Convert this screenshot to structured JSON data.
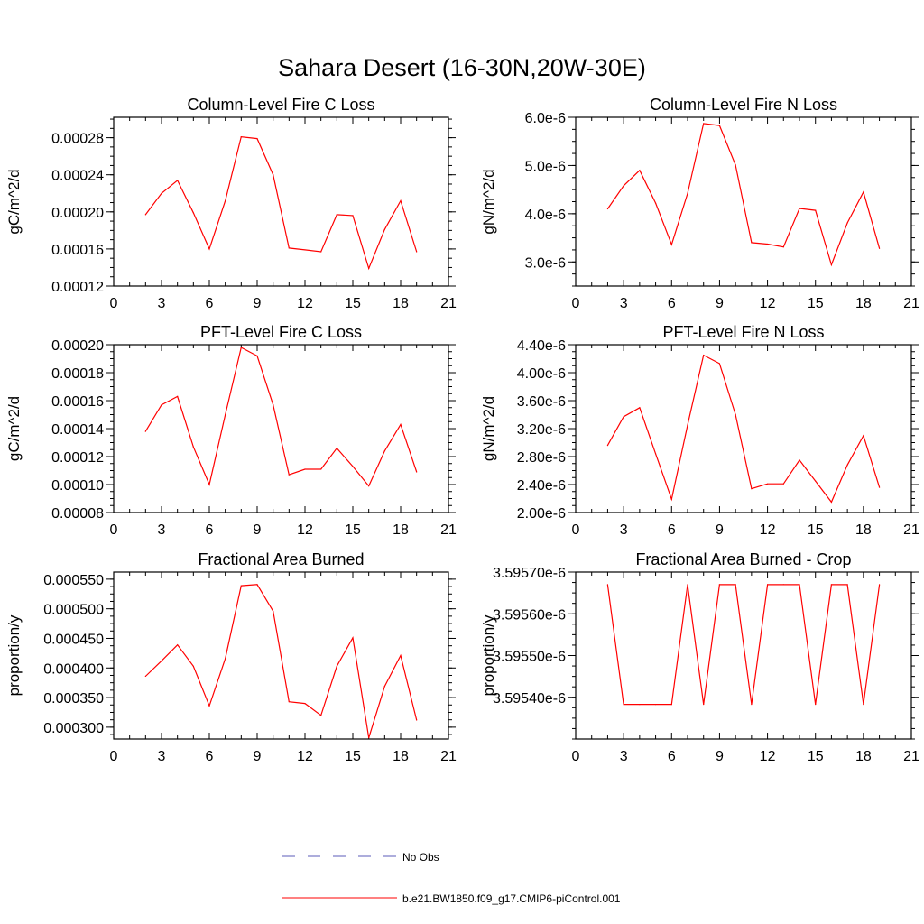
{
  "page_title": "Sahara Desert (16-30N,20W-30E)",
  "legend": {
    "items": [
      {
        "label": "No Obs",
        "color": "#5b5bb8",
        "dash": true
      },
      {
        "label": "b.e21.BW1850.f09_g17.CMIP6-piControl.001",
        "color": "#ff0000",
        "dash": false
      }
    ]
  },
  "colors": {
    "series": "#ff0000",
    "axis": "#000000"
  },
  "chart_data": [
    {
      "type": "line",
      "title": "Column-Level Fire C Loss",
      "xlabel": "",
      "ylabel": "gC/m^2/d",
      "xlim": [
        0,
        21
      ],
      "ylim": [
        0.00012,
        0.000302
      ],
      "xticks": [
        0,
        3,
        6,
        9,
        12,
        15,
        18,
        21
      ],
      "xtick_labels": [
        "0",
        "3",
        "6",
        "9",
        "12",
        "15",
        "18",
        "21"
      ],
      "yticks": [
        0.00012,
        0.00016,
        0.0002,
        0.00024,
        0.00028
      ],
      "ytick_labels": [
        "0.00012",
        "0.00016",
        "0.00020",
        "0.00024",
        "0.00028"
      ],
      "series": [
        {
          "x": [
            2,
            3,
            4,
            5,
            6,
            7,
            8,
            9,
            10,
            11,
            12,
            13,
            14,
            15,
            16,
            17,
            18,
            19
          ],
          "values": [
            0.000197,
            0.00022,
            0.000234,
            0.000199,
            0.00016,
            0.000212,
            0.000281,
            0.000279,
            0.00024,
            0.000161,
            0.000159,
            0.000157,
            0.000197,
            0.000196,
            0.000139,
            0.000181,
            0.000212,
            0.000157
          ]
        }
      ]
    },
    {
      "type": "line",
      "title": "Column-Level Fire N Loss",
      "xlabel": "",
      "ylabel": "gN/m^2/d",
      "xlim": [
        0,
        21
      ],
      "ylim": [
        2.5e-06,
        6e-06
      ],
      "xticks": [
        0,
        3,
        6,
        9,
        12,
        15,
        18,
        21
      ],
      "xtick_labels": [
        "0",
        "3",
        "6",
        "9",
        "12",
        "15",
        "18",
        "21"
      ],
      "yticks": [
        3e-06,
        4e-06,
        5e-06,
        6e-06
      ],
      "ytick_labels": [
        "3.0e-6",
        "4.0e-6",
        "5.0e-6",
        "6.0e-6"
      ],
      "series": [
        {
          "x": [
            2,
            3,
            4,
            5,
            6,
            7,
            8,
            9,
            10,
            11,
            12,
            13,
            14,
            15,
            16,
            17,
            18,
            19
          ],
          "values": [
            4.1e-06,
            4.58e-06,
            4.9e-06,
            4.22e-06,
            3.36e-06,
            4.42e-06,
            5.87e-06,
            5.83e-06,
            5.01e-06,
            3.4e-06,
            3.37e-06,
            3.31e-06,
            4.11e-06,
            4.07e-06,
            2.94e-06,
            3.81e-06,
            4.45e-06,
            3.28e-06
          ]
        }
      ]
    },
    {
      "type": "line",
      "title": "PFT-Level Fire C Loss",
      "xlabel": "",
      "ylabel": "gC/m^2/d",
      "xlim": [
        0,
        21
      ],
      "ylim": [
        8e-05,
        0.0002
      ],
      "xticks": [
        0,
        3,
        6,
        9,
        12,
        15,
        18,
        21
      ],
      "xtick_labels": [
        "0",
        "3",
        "6",
        "9",
        "12",
        "15",
        "18",
        "21"
      ],
      "yticks": [
        8e-05,
        0.0001,
        0.00012,
        0.00014,
        0.00016,
        0.00018,
        0.0002
      ],
      "ytick_labels": [
        "0.00008",
        "0.00010",
        "0.00012",
        "0.00014",
        "0.00016",
        "0.00018",
        "0.00020"
      ],
      "series": [
        {
          "x": [
            2,
            3,
            4,
            5,
            6,
            7,
            8,
            9,
            10,
            11,
            12,
            13,
            14,
            15,
            16,
            17,
            18,
            19
          ],
          "values": [
            0.000138,
            0.000157,
            0.000163,
            0.000127,
            0.0001,
            0.00015,
            0.000198,
            0.000192,
            0.000157,
            0.000107,
            0.000111,
            0.000111,
            0.000126,
            0.000113,
            9.9e-05,
            0.000124,
            0.000143,
            0.000109
          ]
        }
      ]
    },
    {
      "type": "line",
      "title": "PFT-Level Fire N Loss",
      "xlabel": "",
      "ylabel": "gN/m^2/d",
      "xlim": [
        0,
        21
      ],
      "ylim": [
        2e-06,
        4.4e-06
      ],
      "xticks": [
        0,
        3,
        6,
        9,
        12,
        15,
        18,
        21
      ],
      "xtick_labels": [
        "0",
        "3",
        "6",
        "9",
        "12",
        "15",
        "18",
        "21"
      ],
      "yticks": [
        2e-06,
        2.4e-06,
        2.8e-06,
        3.2e-06,
        3.6e-06,
        4e-06,
        4.4e-06
      ],
      "ytick_labels": [
        "2.00e-6",
        "2.40e-6",
        "2.80e-6",
        "3.20e-6",
        "3.60e-6",
        "4.00e-6",
        "4.40e-6"
      ],
      "series": [
        {
          "x": [
            2,
            3,
            4,
            5,
            6,
            7,
            8,
            9,
            10,
            11,
            12,
            13,
            14,
            15,
            16,
            17,
            18,
            19
          ],
          "values": [
            2.96e-06,
            3.37e-06,
            3.5e-06,
            2.84e-06,
            2.19e-06,
            3.25e-06,
            4.25e-06,
            4.13e-06,
            3.4e-06,
            2.34e-06,
            2.41e-06,
            2.41e-06,
            2.75e-06,
            2.45e-06,
            2.15e-06,
            2.68e-06,
            3.1e-06,
            2.36e-06
          ]
        }
      ]
    },
    {
      "type": "line",
      "title": "Fractional Area Burned",
      "xlabel": "",
      "ylabel": "proportion/y",
      "xlim": [
        0,
        21
      ],
      "ylim": [
        0.00028,
        0.000562
      ],
      "xticks": [
        0,
        3,
        6,
        9,
        12,
        15,
        18,
        21
      ],
      "xtick_labels": [
        "0",
        "3",
        "6",
        "9",
        "12",
        "15",
        "18",
        "21"
      ],
      "yticks": [
        0.0003,
        0.00035,
        0.0004,
        0.00045,
        0.0005,
        0.00055
      ],
      "ytick_labels": [
        "0.000300",
        "0.000350",
        "0.000400",
        "0.000450",
        "0.000500",
        "0.000550"
      ],
      "series": [
        {
          "x": [
            2,
            3,
            4,
            5,
            6,
            7,
            8,
            9,
            10,
            11,
            12,
            13,
            14,
            15,
            16,
            17,
            18,
            19
          ],
          "values": [
            0.000386,
            0.000412,
            0.000439,
            0.000403,
            0.000336,
            0.000416,
            0.000539,
            0.000541,
            0.000496,
            0.000343,
            0.00034,
            0.00032,
            0.000403,
            0.000451,
            0.000282,
            0.000369,
            0.000421,
            0.000312
          ]
        }
      ]
    },
    {
      "type": "line",
      "title": "Fractional Area Burned - Crop",
      "xlabel": "",
      "ylabel": "proportion/y",
      "xlim": [
        0,
        21
      ],
      "ylim": [
        3.5953e-06,
        3.5957e-06
      ],
      "xticks": [
        0,
        3,
        6,
        9,
        12,
        15,
        18,
        21
      ],
      "xtick_labels": [
        "0",
        "3",
        "6",
        "9",
        "12",
        "15",
        "18",
        "21"
      ],
      "yticks": [
        3.5954e-06,
        3.5955e-06,
        3.5956e-06,
        3.5957e-06
      ],
      "ytick_labels": [
        "3.59540e-6",
        "3.59550e-6",
        "3.59560e-6",
        "3.59570e-6"
      ],
      "series": [
        {
          "x": [
            2,
            3,
            4,
            5,
            6,
            7,
            8,
            9,
            10,
            11,
            12,
            13,
            14,
            15,
            16,
            17,
            18,
            19
          ],
          "values": [
            3.59567e-06,
            3.595383e-06,
            3.595383e-06,
            3.595383e-06,
            3.595383e-06,
            3.59567e-06,
            3.595383e-06,
            3.59567e-06,
            3.59567e-06,
            3.595383e-06,
            3.59567e-06,
            3.59567e-06,
            3.59567e-06,
            3.595383e-06,
            3.59567e-06,
            3.59567e-06,
            3.595383e-06,
            3.59567e-06
          ]
        }
      ]
    }
  ]
}
